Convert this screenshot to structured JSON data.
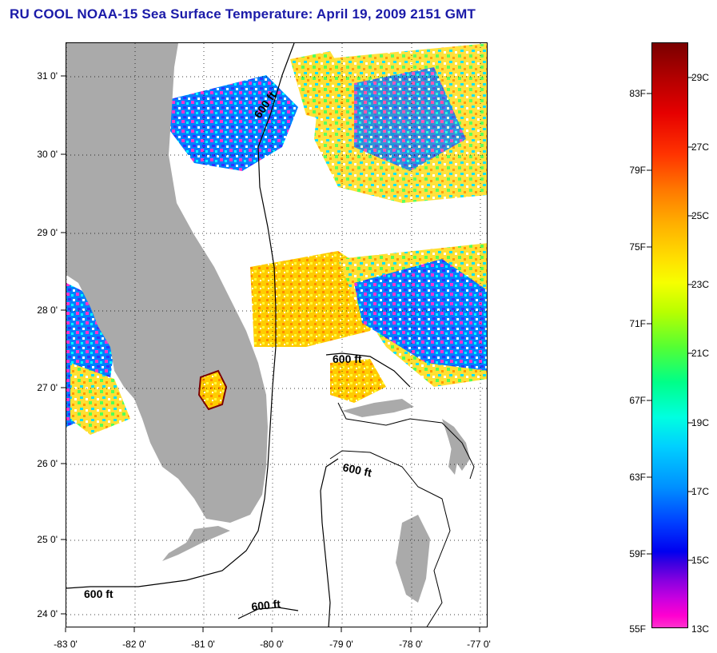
{
  "title": "RU COOL  NOAA-15  Sea Surface Temperature:  April 19, 2009 2151 GMT",
  "lat_ticks": [
    "31 0'",
    "30 0'",
    "29 0'",
    "28 0'",
    "27 0'",
    "26 0'",
    "25 0'",
    "24 0'"
  ],
  "lon_ticks": [
    "-83 0'",
    "-82 0'",
    "-81 0'",
    "-80 0'",
    "-79 0'",
    "-78 0'",
    "-77 0'"
  ],
  "contour_labels": [
    "600 ft",
    "600 ft",
    "600 ft",
    "600 ft",
    "600 ft"
  ],
  "colorbar": {
    "fahrenheit": [
      "83F",
      "79F",
      "75F",
      "71F",
      "67F",
      "63F",
      "59F",
      "55F"
    ],
    "celsius": [
      "29C",
      "27C",
      "25C",
      "23C",
      "21C",
      "19C",
      "17C",
      "15C",
      "13C"
    ]
  },
  "colors": {
    "land": "#aaaaaa",
    "ocean_cloud": "#ffffff",
    "title": "#1a1aa8"
  }
}
